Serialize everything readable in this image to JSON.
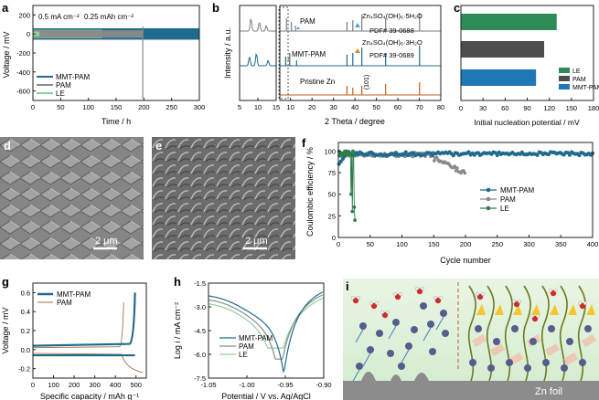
{
  "colors": {
    "mmt": "#1f6b8e",
    "pam": "#8a8a8a",
    "le": "#2f7d4f",
    "le_light": "#8fd19a",
    "pam_gray": "#7d7d7d",
    "zn": "#c06018",
    "bar_le": "#2e8b57",
    "bar_pam": "#4d4d4d",
    "bar_mmt": "#1f78b4",
    "sem_bg": "#7a7a7a"
  },
  "panel_labels": [
    "a",
    "b",
    "c",
    "d",
    "e",
    "f",
    "g",
    "h",
    "i"
  ],
  "chart_data": [
    {
      "panel": "a",
      "type": "line",
      "xlabel": "Time / h",
      "ylabel": "Voltage / mV",
      "xlim": [
        0,
        300
      ],
      "ylim": [
        -700,
        300
      ],
      "xticks": [
        "0",
        "50",
        "100",
        "150",
        "200",
        "250",
        "300"
      ],
      "yticks": [
        "200",
        "0",
        "-200",
        "-400",
        "-600"
      ],
      "annotations": [
        "0.5 mA cm⁻²",
        "0.25 mAh cm⁻²"
      ],
      "series": [
        {
          "name": "MMT-PAM",
          "values": {
            "end_h": 300,
            "band_mv": [
              -60,
              60
            ]
          }
        },
        {
          "name": "PAM",
          "values": {
            "end_h": 198,
            "band_mv": [
              -40,
              40
            ],
            "failure_spike_mv": [
              -680,
              80
            ]
          }
        },
        {
          "name": "LE",
          "values": {
            "end_h": 125,
            "band_mv": [
              -45,
              45
            ]
          }
        }
      ]
    },
    {
      "panel": "b",
      "type": "line",
      "xlabel": "2 Theta / degree",
      "ylabel": "Intensity / a.u.",
      "left_xlim": [
        5,
        15
      ],
      "left_xticks": [
        "5",
        "10",
        "15"
      ],
      "right_xlim": [
        5,
        80
      ],
      "right_xticks": [
        "10",
        "20",
        "30",
        "40",
        "50",
        "60",
        "70",
        "80"
      ],
      "series": [
        {
          "name": "PAM",
          "peaks_deg": [
            8.1,
            10.4,
            12.3,
            36.3,
            39.0,
            43.2,
            54.3,
            70.1
          ]
        },
        {
          "name": "MMT-PAM",
          "peaks_deg": [
            7.7,
            9.6,
            12.8,
            36.3,
            39.0,
            43.2,
            54.3,
            70.1
          ]
        },
        {
          "name": "Pristine Zn",
          "peaks_deg": [
            36.3,
            39.0,
            43.2,
            54.3,
            70.1
          ]
        }
      ],
      "ref_labels": [
        {
          "formula": "Zn₄SO₄(OH)₆·5H₂O",
          "pdf": "PDF# 39-0688"
        },
        {
          "formula": "Zn₄SO₄(OH)₆·3H₂O",
          "pdf": "PDF# 39-0689"
        }
      ],
      "annotations": [
        "(101)"
      ]
    },
    {
      "panel": "c",
      "type": "bar",
      "orientation": "horizontal",
      "xlabel": "Initial nucleation potential / mV",
      "xlim": [
        0,
        180
      ],
      "xticks": [
        "0",
        "30",
        "60",
        "90",
        "120",
        "150",
        "180"
      ],
      "categories": [
        "LE",
        "PAM",
        "MMT-PAM"
      ],
      "values": [
        130,
        113,
        102
      ]
    },
    {
      "panel": "f",
      "type": "scatter",
      "xlabel": "Cycle number",
      "ylabel": "Coulombic efficiency / %",
      "xlim": [
        0,
        400
      ],
      "ylim": [
        0,
        110
      ],
      "xticks": [
        "0",
        "50",
        "100",
        "150",
        "200",
        "250",
        "300",
        "350",
        "400"
      ],
      "yticks": [
        "100",
        "75",
        "50",
        "25",
        "0"
      ],
      "series": [
        {
          "name": "MMT-PAM",
          "cycles": 400,
          "mean_ce": 97
        },
        {
          "name": "PAM",
          "cycles": 200,
          "mean_ce": 95
        },
        {
          "name": "LE",
          "cycles": 26,
          "mean_ce": 94
        }
      ]
    },
    {
      "panel": "g",
      "type": "line",
      "xlabel": "Specific capacity / mAh g⁻¹",
      "ylabel": "Voltage / mV",
      "xlim": [
        0,
        550
      ],
      "ylim": [
        -0.3,
        0.7
      ],
      "xticks": [
        "0",
        "100",
        "200",
        "300",
        "400",
        "500"
      ],
      "yticks": [
        "0.6",
        "0.4",
        "0.2",
        "0.0",
        "-0.2"
      ],
      "series": [
        {
          "name": "MMT-PAM",
          "charge_v": 0.04,
          "discharge_v": -0.06,
          "capacity": 490
        },
        {
          "name": "PAM",
          "charge_v": 0.02,
          "discharge_v": -0.04,
          "capacity": 430
        }
      ]
    },
    {
      "panel": "h",
      "type": "line",
      "xlabel": "Potential / V vs. Ag/AgCl",
      "ylabel": "Log i / mA cm⁻²",
      "xlim": [
        -1.05,
        -0.9
      ],
      "ylim": [
        -7.5,
        -1.5
      ],
      "xticks": [
        "-1.05",
        "-1.00",
        "-0.95",
        "-0.90"
      ],
      "yticks": [
        "-1.5",
        "-3.0",
        "-4.5",
        "-6.0",
        "-7.5"
      ],
      "series": [
        {
          "name": "MMT-PAM",
          "corrosion_v": -0.952,
          "min_log_i": -7.2
        },
        {
          "name": "PAM",
          "corrosion_v": -0.958,
          "min_log_i": -6.3
        },
        {
          "name": "LE",
          "corrosion_v": -0.962,
          "min_log_i": -5.6
        }
      ]
    }
  ],
  "panel_i": {
    "foil_label": "Zn foil"
  },
  "sem": [
    {
      "panel": "d",
      "scale_label": "2 μm"
    },
    {
      "panel": "e",
      "scale_label": "2 μm"
    }
  ]
}
